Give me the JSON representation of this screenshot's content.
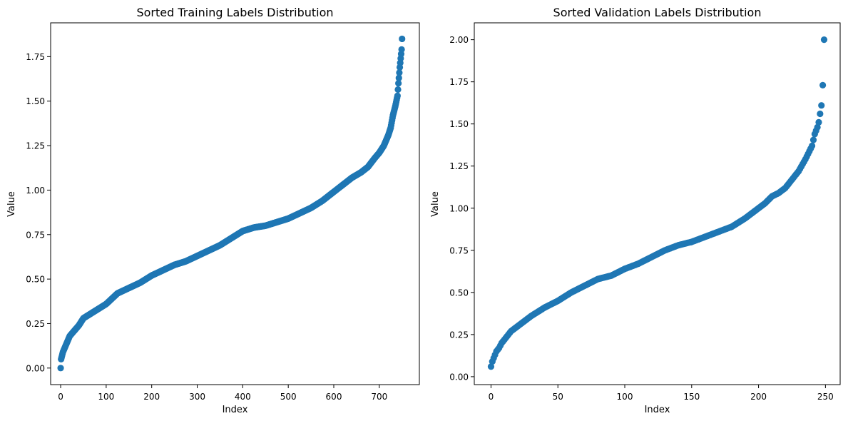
{
  "chart_data": [
    {
      "type": "scatter",
      "title": "Sorted Training Labels Distribution",
      "xlabel": "Index",
      "ylabel": "Value",
      "xlim": [
        -22,
        788
      ],
      "ylim": [
        -0.093,
        1.94
      ],
      "xticks": [
        0,
        100,
        200,
        300,
        400,
        500,
        600,
        700
      ],
      "yticks": [
        0.0,
        0.25,
        0.5,
        0.75,
        1.0,
        1.25,
        1.5,
        1.75
      ],
      "ytick_labels": [
        "0.00",
        "0.25",
        "0.50",
        "0.75",
        "1.00",
        "1.25",
        "1.50",
        "1.75"
      ],
      "grid": false,
      "marker_color": "#1f77b4",
      "n_points": 751,
      "curve": [
        [
          0,
          0.0
        ],
        [
          1,
          0.05
        ],
        [
          5,
          0.09
        ],
        [
          10,
          0.12
        ],
        [
          15,
          0.15
        ],
        [
          20,
          0.18
        ],
        [
          30,
          0.21
        ],
        [
          40,
          0.24
        ],
        [
          50,
          0.28
        ],
        [
          75,
          0.32
        ],
        [
          100,
          0.36
        ],
        [
          125,
          0.42
        ],
        [
          150,
          0.45
        ],
        [
          175,
          0.48
        ],
        [
          200,
          0.52
        ],
        [
          225,
          0.55
        ],
        [
          250,
          0.58
        ],
        [
          275,
          0.6
        ],
        [
          300,
          0.63
        ],
        [
          325,
          0.66
        ],
        [
          350,
          0.69
        ],
        [
          375,
          0.73
        ],
        [
          400,
          0.77
        ],
        [
          425,
          0.79
        ],
        [
          450,
          0.8
        ],
        [
          475,
          0.82
        ],
        [
          500,
          0.84
        ],
        [
          525,
          0.87
        ],
        [
          550,
          0.9
        ],
        [
          575,
          0.94
        ],
        [
          600,
          0.99
        ],
        [
          620,
          1.03
        ],
        [
          640,
          1.07
        ],
        [
          660,
          1.1
        ],
        [
          675,
          1.13
        ],
        [
          690,
          1.18
        ],
        [
          700,
          1.21
        ],
        [
          710,
          1.25
        ],
        [
          720,
          1.31
        ],
        [
          725,
          1.35
        ],
        [
          730,
          1.42
        ],
        [
          735,
          1.47
        ],
        [
          740,
          1.53
        ],
        [
          742,
          1.6
        ],
        [
          745,
          1.69
        ],
        [
          747,
          1.74
        ],
        [
          749,
          1.79
        ],
        [
          750,
          1.85
        ]
      ]
    },
    {
      "type": "scatter",
      "title": "Sorted Validation Labels Distribution",
      "xlabel": "Index",
      "ylabel": "Value",
      "xlim": [
        -12.5,
        261
      ],
      "ylim": [
        -0.047,
        2.1
      ],
      "xticks": [
        0,
        50,
        100,
        150,
        200,
        250
      ],
      "yticks": [
        0.0,
        0.25,
        0.5,
        0.75,
        1.0,
        1.25,
        1.5,
        1.75,
        2.0
      ],
      "ytick_labels": [
        "0.00",
        "0.25",
        "0.50",
        "0.75",
        "1.00",
        "1.25",
        "1.50",
        "1.75",
        "2.00"
      ],
      "grid": false,
      "marker_color": "#1f77b4",
      "n_points": 250,
      "curve": [
        [
          0,
          0.06
        ],
        [
          1,
          0.09
        ],
        [
          2,
          0.11
        ],
        [
          4,
          0.15
        ],
        [
          6,
          0.17
        ],
        [
          8,
          0.2
        ],
        [
          10,
          0.22
        ],
        [
          15,
          0.27
        ],
        [
          20,
          0.3
        ],
        [
          25,
          0.33
        ],
        [
          30,
          0.36
        ],
        [
          40,
          0.41
        ],
        [
          50,
          0.45
        ],
        [
          60,
          0.5
        ],
        [
          70,
          0.54
        ],
        [
          80,
          0.58
        ],
        [
          90,
          0.6
        ],
        [
          100,
          0.64
        ],
        [
          110,
          0.67
        ],
        [
          120,
          0.71
        ],
        [
          130,
          0.75
        ],
        [
          140,
          0.78
        ],
        [
          150,
          0.8
        ],
        [
          160,
          0.83
        ],
        [
          170,
          0.86
        ],
        [
          180,
          0.89
        ],
        [
          190,
          0.94
        ],
        [
          200,
          1.0
        ],
        [
          205,
          1.03
        ],
        [
          210,
          1.07
        ],
        [
          215,
          1.09
        ],
        [
          220,
          1.12
        ],
        [
          225,
          1.17
        ],
        [
          230,
          1.22
        ],
        [
          235,
          1.29
        ],
        [
          240,
          1.37
        ],
        [
          242,
          1.44
        ],
        [
          244,
          1.48
        ],
        [
          245,
          1.51
        ],
        [
          246,
          1.56
        ],
        [
          247,
          1.61
        ],
        [
          248,
          1.73
        ],
        [
          249,
          2.0
        ]
      ]
    }
  ]
}
